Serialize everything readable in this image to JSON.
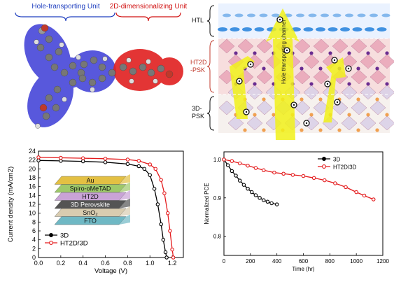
{
  "molecule_panel": {
    "hole_unit_label": "Hole-transporting Unit",
    "dim_unit_label": "2D-dimensionalizing Unit",
    "colors": {
      "hole": "#3b3bd6",
      "dim": "#e02020"
    }
  },
  "structure_panel": {
    "htl_label": "HTL",
    "ht2d_label_line1": "HT2D",
    "ht2d_label_line2": "-PSK",
    "psk3d_label_line1": "3D-",
    "psk3d_label_line2": "PSK",
    "channel_label": "Hole transporting channel",
    "colors": {
      "ht2d": "#c0392b",
      "channel": "#f2f21a"
    }
  },
  "device_stack": {
    "layers": [
      "Au",
      "Spiro-oMeTAD",
      "HT2D",
      "3D Perovskite",
      "SnO₂",
      "FTO"
    ],
    "layer_colors": [
      "#e3c043",
      "#9ec96a",
      "#c9a3d6",
      "#545454",
      "#d9ccb0",
      "#6fb8c4"
    ]
  },
  "chart_data": [
    {
      "type": "line",
      "xlabel": "Voltage (V)",
      "ylabel": "Current density (mA/cm2)",
      "xlim": [
        0.0,
        1.3
      ],
      "ylim": [
        0,
        24
      ],
      "xticks": [
        "0.0",
        "0.2",
        "0.4",
        "0.6",
        "0.8",
        "1.0",
        "1.2"
      ],
      "yticks": [
        "0",
        "2",
        "4",
        "6",
        "8",
        "10",
        "12",
        "14",
        "16",
        "18",
        "20",
        "22",
        "24"
      ],
      "legend": "bottom-left",
      "series": [
        {
          "name": "3D",
          "color": "#000000",
          "x": [
            0,
            0.2,
            0.4,
            0.6,
            0.8,
            0.9,
            0.95,
            1.0,
            1.04,
            1.07,
            1.1,
            1.12,
            1.14,
            1.15
          ],
          "y": [
            21.9,
            21.8,
            21.7,
            21.5,
            21.1,
            20.6,
            20.0,
            18.6,
            15.5,
            12.0,
            7.5,
            4.0,
            1.2,
            0
          ]
        },
        {
          "name": "HT2D/3D",
          "color": "#e41a1c",
          "x": [
            0,
            0.2,
            0.4,
            0.6,
            0.8,
            0.9,
            1.0,
            1.05,
            1.1,
            1.13,
            1.16,
            1.18,
            1.2,
            1.21
          ],
          "y": [
            22.6,
            22.5,
            22.4,
            22.3,
            22.1,
            21.8,
            21.0,
            20.0,
            17.5,
            14.5,
            10.0,
            6.0,
            1.8,
            0
          ]
        }
      ]
    },
    {
      "type": "line",
      "xlabel": "Time (hr)",
      "ylabel": "Normalized PCE",
      "xlim": [
        0,
        1200
      ],
      "ylim": [
        0.75,
        1.02
      ],
      "xticks": [
        "0",
        "200",
        "400",
        "600",
        "800",
        "1000",
        "1200"
      ],
      "yticks": [
        "0.8",
        "0.9",
        "1.0"
      ],
      "legend": "top-right",
      "series": [
        {
          "name": "3D",
          "color": "#000000",
          "x": [
            0,
            30,
            60,
            90,
            120,
            150,
            180,
            210,
            240,
            270,
            300,
            330,
            360,
            400
          ],
          "y": [
            1.0,
            0.985,
            0.97,
            0.958,
            0.945,
            0.934,
            0.924,
            0.915,
            0.907,
            0.9,
            0.894,
            0.89,
            0.886,
            0.883
          ]
        },
        {
          "name": "HT2D/3D",
          "color": "#e41a1c",
          "x": [
            0,
            60,
            120,
            180,
            240,
            300,
            380,
            450,
            520,
            600,
            680,
            760,
            840,
            920,
            1000,
            1060,
            1130
          ],
          "y": [
            1.0,
            0.996,
            0.99,
            0.984,
            0.978,
            0.972,
            0.966,
            0.963,
            0.96,
            0.957,
            0.952,
            0.946,
            0.938,
            0.928,
            0.915,
            0.906,
            0.896
          ]
        }
      ]
    }
  ]
}
